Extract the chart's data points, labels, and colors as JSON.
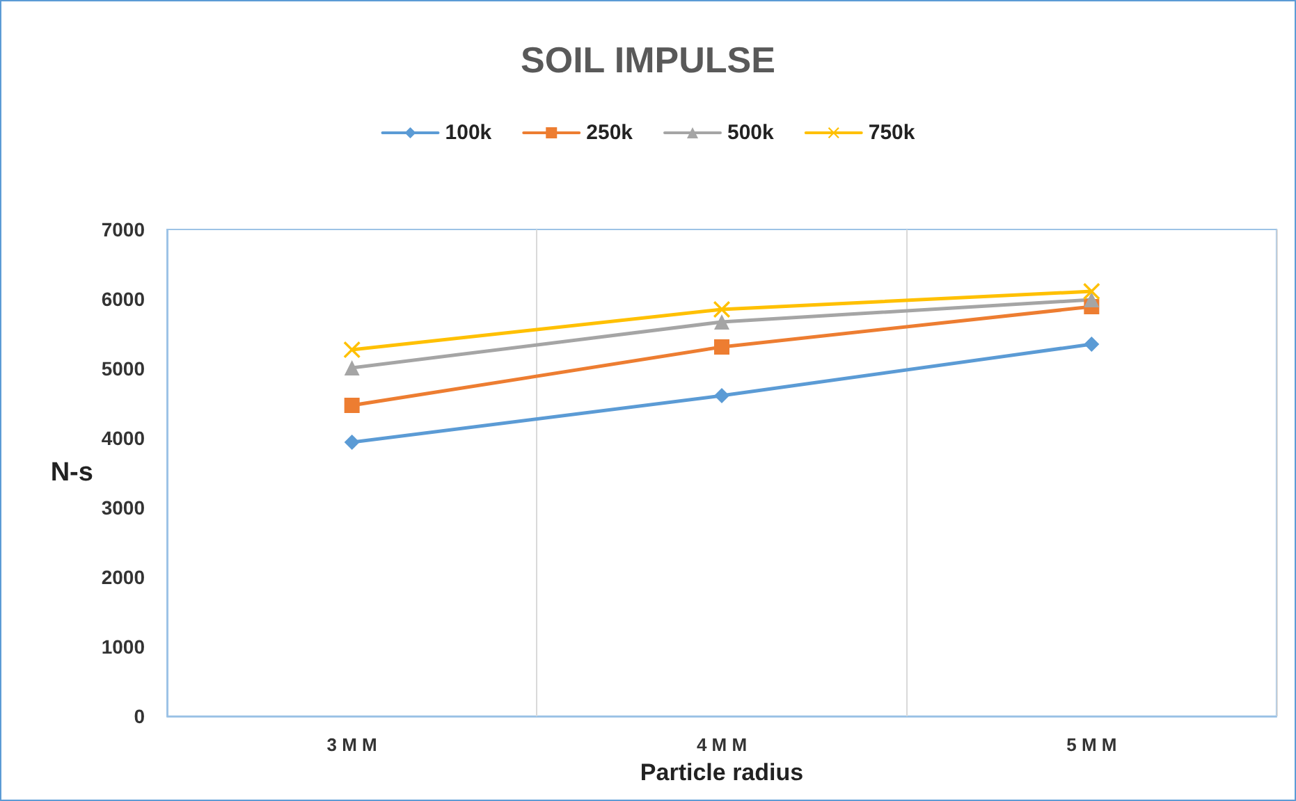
{
  "chart_data": {
    "type": "line",
    "title": "SOIL IMPULSE",
    "xlabel": "Particle radius",
    "ylabel": "N-s",
    "categories": [
      "3 M M",
      "4 M M",
      "5 M M"
    ],
    "series": [
      {
        "name": "100k",
        "color": "#5b9bd5",
        "marker": "diamond",
        "values": [
          3940,
          4610,
          5350
        ]
      },
      {
        "name": "250k",
        "color": "#ed7d31",
        "marker": "square",
        "values": [
          4470,
          5310,
          5890
        ]
      },
      {
        "name": "500k",
        "color": "#a5a5a5",
        "marker": "triangle",
        "values": [
          5010,
          5670,
          5990
        ]
      },
      {
        "name": "750k",
        "color": "#ffc000",
        "marker": "cross",
        "values": [
          5270,
          5850,
          6110
        ]
      }
    ],
    "ylim": [
      0,
      7000
    ],
    "yticks": [
      0,
      1000,
      2000,
      3000,
      4000,
      5000,
      6000,
      7000
    ],
    "grid": "x",
    "legend": "top",
    "line_style": "solid"
  }
}
